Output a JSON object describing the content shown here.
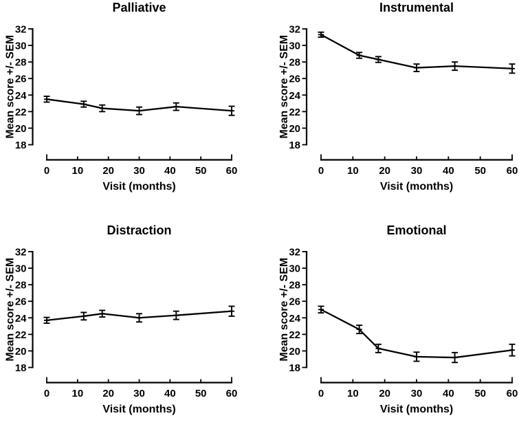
{
  "style": {
    "line_color": "#000000",
    "text_color": "#000000",
    "background": "#ffffff"
  },
  "chart_data": [
    {
      "type": "line",
      "title": "Palliative",
      "xlabel": "Visit (months)",
      "ylabel": "Mean score +/- SEM",
      "x": [
        0,
        12,
        18,
        30,
        42,
        60
      ],
      "values": [
        23.5,
        22.9,
        22.4,
        22.1,
        22.6,
        22.1
      ],
      "sem": [
        0.35,
        0.35,
        0.4,
        0.45,
        0.45,
        0.55
      ],
      "xticks": [
        0,
        10,
        20,
        30,
        40,
        50,
        60
      ],
      "yticks": [
        18,
        20,
        22,
        24,
        26,
        28,
        30,
        32
      ],
      "xlim": [
        0,
        60
      ],
      "ylim": [
        18,
        32
      ],
      "grid": false,
      "legend": "none",
      "error_bars": "SEM",
      "marker": "dash"
    },
    {
      "type": "line",
      "title": "Instrumental",
      "xlabel": "Visit (months)",
      "ylabel": "Mean score +/- SEM",
      "x": [
        0,
        12,
        18,
        30,
        42,
        60
      ],
      "values": [
        31.3,
        28.8,
        28.3,
        27.3,
        27.5,
        27.2
      ],
      "sem": [
        0.3,
        0.35,
        0.35,
        0.45,
        0.5,
        0.55
      ],
      "xticks": [
        0,
        10,
        20,
        30,
        40,
        50,
        60
      ],
      "yticks": [
        18,
        20,
        22,
        24,
        26,
        28,
        30,
        32
      ],
      "xlim": [
        0,
        60
      ],
      "ylim": [
        18,
        32
      ],
      "grid": false,
      "legend": "none",
      "error_bars": "SEM",
      "marker": "dash"
    },
    {
      "type": "line",
      "title": "Distraction",
      "xlabel": "Visit (months)",
      "ylabel": "Mean score +/- SEM",
      "x": [
        0,
        12,
        18,
        30,
        42,
        60
      ],
      "values": [
        23.7,
        24.2,
        24.5,
        24.0,
        24.3,
        24.8
      ],
      "sem": [
        0.35,
        0.45,
        0.4,
        0.5,
        0.5,
        0.6
      ],
      "xticks": [
        0,
        10,
        20,
        30,
        40,
        50,
        60
      ],
      "yticks": [
        18,
        20,
        22,
        24,
        26,
        28,
        30,
        32
      ],
      "xlim": [
        0,
        60
      ],
      "ylim": [
        18,
        32
      ],
      "grid": false,
      "legend": "none",
      "error_bars": "SEM",
      "marker": "dash"
    },
    {
      "type": "line",
      "title": "Emotional",
      "xlabel": "Visit (months)",
      "ylabel": "Mean score +/- SEM",
      "x": [
        0,
        12,
        18,
        30,
        42,
        60
      ],
      "values": [
        25.0,
        22.6,
        20.3,
        19.3,
        19.2,
        20.1
      ],
      "sem": [
        0.4,
        0.5,
        0.5,
        0.55,
        0.6,
        0.7
      ],
      "xticks": [
        0,
        10,
        20,
        30,
        40,
        50,
        60
      ],
      "yticks": [
        18,
        20,
        22,
        24,
        26,
        28,
        30,
        32
      ],
      "xlim": [
        0,
        60
      ],
      "ylim": [
        18,
        32
      ],
      "grid": false,
      "legend": "none",
      "error_bars": "SEM",
      "marker": "dash"
    }
  ]
}
